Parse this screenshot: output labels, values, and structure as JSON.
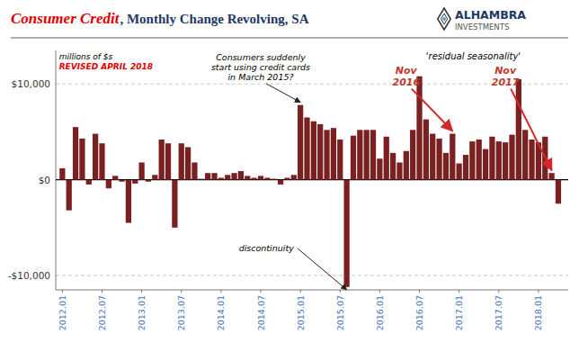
{
  "chart_data": {
    "type": "bar",
    "title": "Consumer Credit",
    "subtitle": ", Monthly Change Revolving, SA",
    "categories": [
      "2012.01",
      null,
      null,
      null,
      null,
      null,
      "2012.07",
      null,
      null,
      null,
      null,
      null,
      "2013.01",
      null,
      null,
      null,
      null,
      null,
      "2013.07",
      null,
      null,
      null,
      null,
      null,
      "2014.01",
      null,
      null,
      null,
      null,
      null,
      "2014.07",
      null,
      null,
      null,
      null,
      null,
      "2015.01",
      null,
      null,
      null,
      null,
      null,
      "2015.07",
      null,
      null,
      null,
      null,
      null,
      "2016.01",
      null,
      null,
      null,
      null,
      null,
      "2016.07",
      null,
      null,
      null,
      null,
      null,
      "2017.01",
      null,
      null,
      null,
      null,
      null,
      "2017.07",
      null,
      null,
      null,
      null,
      null,
      "2018.01",
      null,
      null,
      null
    ],
    "values": [
      1200,
      -3200,
      5500,
      4300,
      -500,
      4800,
      3800,
      -900,
      400,
      -200,
      -4500,
      -400,
      1800,
      -200,
      500,
      4200,
      3800,
      -5000,
      3800,
      3400,
      1800,
      100,
      700,
      700,
      200,
      500,
      700,
      900,
      400,
      200,
      400,
      200,
      100,
      -500,
      200,
      500,
      7800,
      6500,
      6100,
      5800,
      5200,
      5400,
      4200,
      -11200,
      4600,
      5200,
      5200,
      5200,
      2200,
      4500,
      2800,
      1800,
      3000,
      5200,
      10800,
      6300,
      4800,
      4300,
      2800,
      4800,
      1700,
      2600,
      4000,
      4200,
      3200,
      4500,
      4000,
      3900,
      4700,
      10500,
      5200,
      4200,
      3900,
      4500,
      700,
      -2500
    ],
    "color": "#7B2020",
    "ylim": [
      -11500,
      13500
    ],
    "yticks": [
      {
        "value": -10000,
        "label": "-$10,000"
      },
      {
        "value": 0,
        "label": "$0"
      },
      {
        "value": 10000,
        "label": "$10,000"
      }
    ],
    "grid": true,
    "annotations": [
      {
        "text": "millions of $s"
      },
      {
        "text": "REVISED APRIL 2018"
      },
      {
        "text": "'residual seasonality'"
      },
      {
        "text": "Consumers suddenly\nstart using credit cards\nin March 2015?",
        "x": 36
      },
      {
        "text": "discontinuity",
        "x": 43
      },
      {
        "text": "Nov\n2016",
        "x": 59
      },
      {
        "text": "Nov\n2017",
        "x": 74
      },
      {
        "text": "ALHAMBRA"
      },
      {
        "text": "INVESTMENTS"
      }
    ]
  }
}
